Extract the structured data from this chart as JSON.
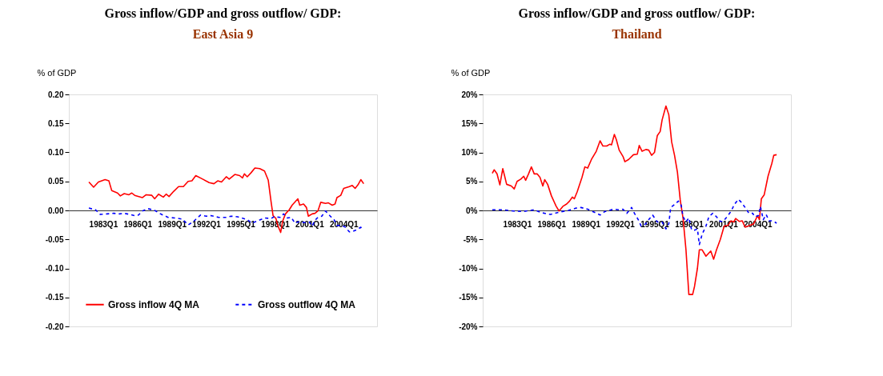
{
  "chart_data": [
    {
      "type": "line",
      "title": "Gross inflow/GDP and gross outflow/ GDP:",
      "subtitle": "East Asia 9",
      "ylabel": "% of GDP",
      "legend": "bottom",
      "grid": false,
      "xlim": [
        "1980-01",
        "2006-12"
      ],
      "ylim": [
        -0.2,
        0.2
      ],
      "xticks": [
        {
          "value": "1983-01",
          "label": "1983Q1"
        },
        {
          "value": "1986-01",
          "label": "1986Q1"
        },
        {
          "value": "1989-01",
          "label": "1989Q1"
        },
        {
          "value": "1992-01",
          "label": "1992Q1"
        },
        {
          "value": "1995-01",
          "label": "1995Q1"
        },
        {
          "value": "1998-01",
          "label": "1998Q1"
        },
        {
          "value": "2001-01",
          "label": "2001Q1"
        },
        {
          "value": "2004-01",
          "label": "2004Q1"
        }
      ],
      "yticks": [
        {
          "value": 0.2,
          "label": "0.20"
        },
        {
          "value": 0.15,
          "label": "0.15"
        },
        {
          "value": 0.1,
          "label": "0.10"
        },
        {
          "value": 0.05,
          "label": "0.05"
        },
        {
          "value": 0,
          "label": "0.00"
        },
        {
          "value": -0.05,
          "label": "-0.05"
        },
        {
          "value": -0.1,
          "label": "-0.10"
        },
        {
          "value": -0.15,
          "label": "-0.15"
        },
        {
          "value": -0.2,
          "label": "-0.20"
        }
      ],
      "series": [
        {
          "name": "Gross inflow 4Q MA",
          "color": "#ff0000",
          "line_style": "solid",
          "x": [
            "1981-10",
            "1982-03",
            "1982-08",
            "1983-03",
            "1983-07",
            "1983-10",
            "1984-04",
            "1984-07",
            "1984-11",
            "1985-04",
            "1985-07",
            "1985-10",
            "1986-06",
            "1986-10",
            "1987-04",
            "1987-07",
            "1987-11",
            "1988-04",
            "1988-07",
            "1988-10",
            "1989-03",
            "1989-08",
            "1990-01",
            "1990-06",
            "1990-10",
            "1991-02",
            "1991-08",
            "1992-04",
            "1992-09",
            "1993-01",
            "1993-05",
            "1993-10",
            "1994-01",
            "1994-07",
            "1994-12",
            "1995-03",
            "1995-05",
            "1995-08",
            "1995-12",
            "1996-04",
            "1996-09",
            "1997-02",
            "1997-06",
            "1997-09",
            "1997-11",
            "1998-02",
            "1998-04",
            "1998-07",
            "1998-09",
            "1998-12",
            "1999-04",
            "1999-07",
            "2000-01",
            "2000-03",
            "2000-07",
            "2000-10",
            "2000-12",
            "2001-04",
            "2001-07",
            "2001-10",
            "2002-01",
            "2002-06",
            "2002-09",
            "2003-01",
            "2003-04",
            "2003-06",
            "2003-10",
            "2004-01",
            "2004-07",
            "2004-10",
            "2005-01",
            "2005-04",
            "2005-07",
            "2005-10"
          ],
          "values": [
            0.049,
            0.04,
            0.049,
            0.053,
            0.051,
            0.034,
            0.03,
            0.025,
            0.029,
            0.027,
            0.03,
            0.026,
            0.022,
            0.027,
            0.026,
            0.02,
            0.028,
            0.023,
            0.028,
            0.024,
            0.033,
            0.041,
            0.041,
            0.05,
            0.051,
            0.06,
            0.055,
            0.048,
            0.046,
            0.051,
            0.049,
            0.058,
            0.054,
            0.062,
            0.06,
            0.056,
            0.063,
            0.058,
            0.065,
            0.073,
            0.072,
            0.068,
            0.052,
            0.014,
            -0.009,
            -0.014,
            -0.026,
            -0.038,
            -0.019,
            -0.006,
            0.001,
            0.009,
            0.02,
            0.009,
            0.011,
            0.005,
            -0.01,
            -0.006,
            -0.005,
            -0.001,
            0.014,
            0.012,
            0.013,
            0.009,
            0.011,
            0.022,
            0.026,
            0.038,
            0.041,
            0.043,
            0.038,
            0.044,
            0.053,
            0.046
          ]
        },
        {
          "name": "Gross outflow 4Q MA",
          "color": "#0000ff",
          "line_style": "dashed",
          "x": [
            "1981-10",
            "1982-05",
            "1982-10",
            "1983-05",
            "1983-12",
            "1984-06",
            "1984-11",
            "1985-05",
            "1985-10",
            "1986-02",
            "1986-06",
            "1986-12",
            "1987-07",
            "1988-01",
            "1988-09",
            "1989-04",
            "1989-12",
            "1990-06",
            "1990-11",
            "1991-07",
            "1992-01",
            "1992-06",
            "1993-02",
            "1993-10",
            "1994-03",
            "1994-10",
            "1995-08",
            "1996-01",
            "1996-07",
            "1997-02",
            "1997-09",
            "1997-12",
            "1998-07",
            "1998-10",
            "1999-02",
            "1999-06",
            "1999-10",
            "2000-03",
            "2000-08",
            "2001-01",
            "2001-04",
            "2001-07",
            "2001-10",
            "2002-02",
            "2002-06",
            "2002-11",
            "2003-03",
            "2003-06",
            "2003-10",
            "2004-02",
            "2004-07",
            "2004-11",
            "2005-03",
            "2005-07",
            "2005-09"
          ],
          "values": [
            0.004,
            0.001,
            -0.007,
            -0.006,
            -0.005,
            -0.006,
            -0.005,
            -0.007,
            -0.009,
            -0.008,
            -0.001,
            0.003,
            0.0,
            -0.006,
            -0.012,
            -0.013,
            -0.015,
            -0.025,
            -0.02,
            -0.008,
            -0.01,
            -0.009,
            -0.012,
            -0.012,
            -0.01,
            -0.011,
            -0.016,
            -0.022,
            -0.018,
            -0.013,
            -0.014,
            -0.011,
            -0.012,
            -0.006,
            -0.013,
            -0.012,
            -0.022,
            -0.019,
            -0.021,
            -0.02,
            -0.027,
            -0.017,
            -0.012,
            -0.01,
            -0.001,
            -0.01,
            -0.016,
            -0.026,
            -0.026,
            -0.028,
            -0.037,
            -0.036,
            -0.033,
            -0.029,
            -0.034
          ]
        }
      ]
    },
    {
      "type": "line",
      "title": "Gross inflow/GDP and gross outflow/ GDP:",
      "subtitle": "Thailand",
      "ylabel": "% of GDP",
      "legend": "bottom",
      "grid": false,
      "xlim": [
        "1980-01",
        "2006-12"
      ],
      "ylim": [
        -20,
        20
      ],
      "xticks": [
        {
          "value": "1983-01",
          "label": "1983Q1"
        },
        {
          "value": "1986-01",
          "label": "1986Q1"
        },
        {
          "value": "1989-01",
          "label": "1989Q1"
        },
        {
          "value": "1992-01",
          "label": "1992Q1"
        },
        {
          "value": "1995-01",
          "label": "1995Q1"
        },
        {
          "value": "1998-01",
          "label": "1998Q1"
        },
        {
          "value": "2001-01",
          "label": "2001Q1"
        },
        {
          "value": "2004-01",
          "label": "2004Q1"
        }
      ],
      "yticks": [
        {
          "value": 20,
          "label": "20%"
        },
        {
          "value": 15,
          "label": "15%"
        },
        {
          "value": 10,
          "label": "10%"
        },
        {
          "value": 5,
          "label": "5%"
        },
        {
          "value": 0,
          "label": "0%"
        },
        {
          "value": -5,
          "label": "-5%"
        },
        {
          "value": -10,
          "label": "-10%"
        },
        {
          "value": -15,
          "label": "-15%"
        },
        {
          "value": -20,
          "label": "-20%"
        }
      ],
      "series": [
        {
          "name": "Gross inflow 4Q MA",
          "color": "#ff0000",
          "line_style": "solid",
          "x": [
            "1980-11",
            "1981-01",
            "1981-04",
            "1981-07",
            "1981-10",
            "1981-12",
            "1982-02",
            "1982-07",
            "1982-10",
            "1983-01",
            "1983-05",
            "1983-08",
            "1983-10",
            "1984-01",
            "1984-04",
            "1984-07",
            "1984-10",
            "1985-01",
            "1985-04",
            "1985-06",
            "1985-09",
            "1986-01",
            "1986-06",
            "1986-09",
            "1987-01",
            "1987-05",
            "1987-08",
            "1987-11",
            "1988-01",
            "1988-04",
            "1988-09",
            "1988-12",
            "1989-03",
            "1989-07",
            "1989-12",
            "1990-04",
            "1990-07",
            "1990-11",
            "1991-02",
            "1991-04",
            "1991-07",
            "1991-09",
            "1991-12",
            "1992-04",
            "1992-06",
            "1992-10",
            "1993-03",
            "1993-07",
            "1993-09",
            "1993-12",
            "1994-04",
            "1994-07",
            "1994-10",
            "1995-01",
            "1995-04",
            "1995-07",
            "1995-09",
            "1996-01",
            "1996-04",
            "1996-07",
            "1996-10",
            "1997-01",
            "1997-04",
            "1997-07",
            "1997-10",
            "1998-01",
            "1998-05",
            "1998-07",
            "1998-10",
            "1998-12",
            "1999-03",
            "1999-07",
            "1999-12",
            "2000-03",
            "2000-06",
            "2000-10",
            "2001-02",
            "2001-06",
            "2001-09",
            "2001-12",
            "2002-02",
            "2002-06",
            "2002-09",
            "2002-12",
            "2003-05",
            "2003-09",
            "2004-01",
            "2004-03",
            "2004-05",
            "2004-08",
            "2004-12",
            "2005-04",
            "2005-06",
            "2005-09"
          ],
          "values": [
            6.4,
            7.0,
            6.3,
            4.4,
            7.2,
            5.9,
            4.5,
            4.2,
            3.7,
            5.0,
            5.4,
            5.9,
            5.2,
            6.3,
            7.5,
            6.3,
            6.3,
            5.7,
            4.2,
            5.3,
            4.5,
            2.5,
            0.7,
            -0.1,
            0.7,
            1.1,
            1.6,
            2.3,
            2.0,
            3.2,
            5.7,
            7.5,
            7.3,
            8.8,
            10.2,
            12.0,
            11.1,
            11.1,
            11.4,
            11.3,
            13.1,
            12.2,
            10.4,
            9.3,
            8.4,
            8.8,
            9.6,
            9.7,
            11.2,
            10.2,
            10.5,
            10.4,
            9.5,
            10.0,
            12.9,
            13.6,
            15.6,
            18.0,
            16.5,
            11.8,
            9.5,
            6.6,
            1.8,
            -1.4,
            -6.8,
            -14.5,
            -14.5,
            -13.1,
            -10.0,
            -6.8,
            -6.8,
            -7.9,
            -7.0,
            -8.4,
            -6.8,
            -5.0,
            -2.7,
            -2.6,
            -1.8,
            -2.0,
            -1.4,
            -1.9,
            -1.8,
            -2.9,
            -2.6,
            -2.3,
            -0.9,
            -1.6,
            2.0,
            2.7,
            5.9,
            8.1,
            9.5,
            9.6
          ]
        },
        {
          "name": "Gross outflow 4Q MA",
          "color": "#0000ff",
          "line_style": "dashed",
          "x": [
            "1980-11",
            "1981-11",
            "1982-09",
            "1983-07",
            "1984-07",
            "1985-03",
            "1985-12",
            "1986-09",
            "1987-07",
            "1988-03",
            "1988-08",
            "1989-03",
            "1989-11",
            "1990-04",
            "1990-09",
            "1991-06",
            "1991-12",
            "1992-04",
            "1992-08",
            "1993-01",
            "1993-04",
            "1993-08",
            "1993-11",
            "1994-04",
            "1994-07",
            "1994-11",
            "1995-04",
            "1995-09",
            "1996-01",
            "1996-04",
            "1996-06",
            "1996-10",
            "1997-02",
            "1997-05",
            "1997-07",
            "1997-10",
            "1998-01",
            "1998-04",
            "1998-07",
            "1998-10",
            "1998-12",
            "1999-03",
            "1999-07",
            "1999-10",
            "2000-02",
            "2000-06",
            "2000-10",
            "2001-01",
            "2001-05",
            "2001-09",
            "2002-01",
            "2002-05",
            "2002-08",
            "2002-12",
            "2003-04",
            "2003-08",
            "2003-10",
            "2004-02",
            "2004-04",
            "2004-07",
            "2004-10",
            "2005-01",
            "2005-05",
            "2005-09"
          ],
          "values": [
            0.1,
            0.1,
            -0.1,
            -0.2,
            0.1,
            -0.4,
            -0.7,
            -0.3,
            0.0,
            0.4,
            0.5,
            0.2,
            -0.4,
            -0.8,
            -0.2,
            0.2,
            0.1,
            0.2,
            -0.5,
            0.5,
            -0.5,
            -1.6,
            -2.7,
            -2.3,
            -1.6,
            -0.8,
            -2.0,
            -2.0,
            -3.2,
            -2.3,
            0.5,
            1.0,
            1.6,
            0.9,
            -1.1,
            -2.0,
            -1.3,
            -3.4,
            -3.4,
            -3.2,
            -5.9,
            -4.1,
            -2.7,
            -1.1,
            -0.5,
            -1.1,
            -1.9,
            -1.9,
            -1.1,
            -0.2,
            1.1,
            1.9,
            1.4,
            0.5,
            -0.5,
            -0.5,
            -1.1,
            -0.9,
            0.7,
            -1.6,
            -0.7,
            -1.8,
            -1.8,
            -2.2
          ]
        }
      ]
    }
  ]
}
